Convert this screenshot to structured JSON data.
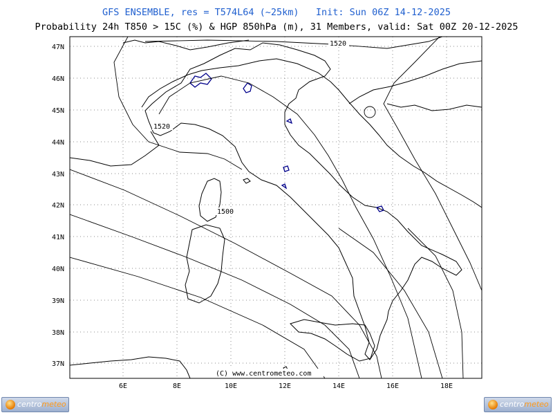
{
  "header": {
    "title_line1": "GFS ENSEMBLE, res = T574L64 (~25km)   Init: Sun 06Z 14-12-2025",
    "title_line2": "Probability 24h T850 > 15C (%) & HGP 850hPa (m), 31 Members, valid: Sat 00Z 20-12-2025"
  },
  "map": {
    "lat_ticks": [
      "47N",
      "46N",
      "45N",
      "44N",
      "43N",
      "42N",
      "41N",
      "40N",
      "39N",
      "38N",
      "37N"
    ],
    "lon_ticks": [
      "6E",
      "8E",
      "10E",
      "12E",
      "14E",
      "16E",
      "18E"
    ],
    "contour_labels": [
      "1520",
      "1520",
      "1500"
    ],
    "copyright": "(C) www.centrometeo.com"
  },
  "colors": {
    "title": "#1f5fcf",
    "coast": "#000000",
    "lakes": "#00008b",
    "grid": "#8a8a8a"
  },
  "logo": {
    "brand_a": "centro",
    "brand_b": "meteo"
  }
}
